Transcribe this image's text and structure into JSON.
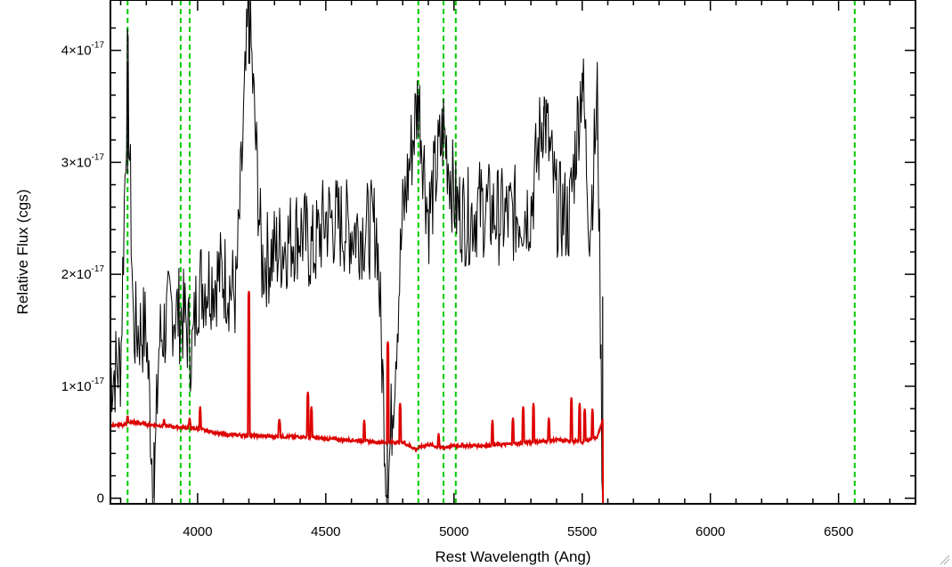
{
  "chart_data": {
    "type": "line",
    "xlabel": "Rest Wavelength (Ang)",
    "ylabel": "Relative Flux (cgs)",
    "xlim": [
      3660,
      6800
    ],
    "ylim": [
      -0.05,
      4.45
    ],
    "y_scale_note": "values in units of 1e-17",
    "x_ticks": [
      4000,
      4500,
      5000,
      5500,
      6000,
      6500
    ],
    "x_tick_labels": [
      "4000",
      "4500",
      "5000",
      "5500",
      "6000",
      "6500"
    ],
    "y_ticks": [
      0,
      1,
      2,
      3,
      4
    ],
    "y_tick_labels": [
      {
        "base": "0",
        "exp": ""
      },
      {
        "base": "1×10",
        "exp": "-17"
      },
      {
        "base": "2×10",
        "exp": "-17"
      },
      {
        "base": "3×10",
        "exp": "-17"
      },
      {
        "base": "4×10",
        "exp": "-17"
      }
    ],
    "grid": false,
    "reference_lines": {
      "color": "#00cc00",
      "style": "dashed",
      "x": [
        3727,
        3934,
        3969,
        4861,
        4959,
        5007,
        6563
      ]
    },
    "series": [
      {
        "color": "#000000",
        "description_role": "observed spectrum",
        "x": [
          3660,
          3700,
          3727,
          3750,
          3800,
          3830,
          3850,
          3900,
          3950,
          3980,
          4000,
          4100,
          4150,
          4200,
          4250,
          4300,
          4350,
          4400,
          4450,
          4500,
          4600,
          4700,
          4740,
          4800,
          4861,
          4900,
          4959,
          5007,
          5050,
          5100,
          5200,
          5300,
          5350,
          5400,
          5450,
          5500,
          5530,
          5560,
          5580
        ],
        "y": [
          1.1,
          1.2,
          3.9,
          1.5,
          1.5,
          0.0,
          1.4,
          1.7,
          1.6,
          1.3,
          1.9,
          2.0,
          1.8,
          4.4,
          2.1,
          2.2,
          2.3,
          2.4,
          2.2,
          2.5,
          2.4,
          2.4,
          0.0,
          2.5,
          3.6,
          2.5,
          3.3,
          2.6,
          2.5,
          2.6,
          2.5,
          2.6,
          3.5,
          2.6,
          2.5,
          3.8,
          2.4,
          3.6,
          0.0
        ],
        "noise": 0.45
      },
      {
        "color": "#dd0000",
        "description_role": "model spectrum",
        "x": [
          3660,
          3700,
          3750,
          3800,
          3900,
          4000,
          4100,
          4200,
          4300,
          4400,
          4500,
          4600,
          4700,
          4800,
          4850,
          4900,
          4950,
          5000,
          5100,
          5200,
          5300,
          5400,
          5500,
          5560,
          5580,
          5581,
          6800
        ],
        "y": [
          0.65,
          0.65,
          0.68,
          0.66,
          0.64,
          0.62,
          0.57,
          0.56,
          0.55,
          0.55,
          0.53,
          0.52,
          0.5,
          0.5,
          0.44,
          0.48,
          0.45,
          0.47,
          0.47,
          0.48,
          0.5,
          0.52,
          0.5,
          0.55,
          0.7,
          -0.05,
          -0.05
        ],
        "emission_lines": [
          {
            "x": 3727,
            "y": 0.75
          },
          {
            "x": 3869,
            "y": 0.72
          },
          {
            "x": 3969,
            "y": 0.73
          },
          {
            "x": 4010,
            "y": 0.82
          },
          {
            "x": 4200,
            "y": 1.85
          },
          {
            "x": 4319,
            "y": 0.72
          },
          {
            "x": 4430,
            "y": 0.95
          },
          {
            "x": 4444,
            "y": 0.82
          },
          {
            "x": 4650,
            "y": 0.7
          },
          {
            "x": 4742,
            "y": 1.4
          },
          {
            "x": 4790,
            "y": 0.85
          },
          {
            "x": 4940,
            "y": 0.58
          },
          {
            "x": 5150,
            "y": 0.7
          },
          {
            "x": 5230,
            "y": 0.72
          },
          {
            "x": 5270,
            "y": 0.82
          },
          {
            "x": 5310,
            "y": 0.85
          },
          {
            "x": 5370,
            "y": 0.72
          },
          {
            "x": 5458,
            "y": 0.9
          },
          {
            "x": 5490,
            "y": 0.85
          },
          {
            "x": 5510,
            "y": 0.8
          },
          {
            "x": 5540,
            "y": 0.8
          }
        ]
      }
    ]
  }
}
